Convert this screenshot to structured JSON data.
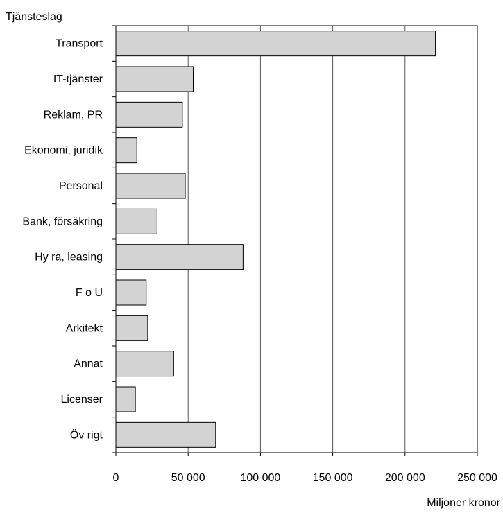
{
  "chart_data": {
    "type": "bar",
    "orientation": "horizontal",
    "title": "",
    "ylabel": "Tjänsteslag",
    "xlabel": "Miljoner kronor",
    "categories": [
      "Transport",
      "IT-tjänster",
      "Reklam, PR",
      "Ekonomi, juridik",
      "Personal",
      "Bank, försäkring",
      "Hy ra, leasing",
      "F o U",
      "Arkitekt",
      "Annat",
      "Licenser",
      "Öv rigt"
    ],
    "values": [
      221000,
      53500,
      46000,
      14500,
      48000,
      28500,
      88000,
      21000,
      22000,
      40000,
      13500,
      69000
    ],
    "xlim": [
      0,
      250000
    ],
    "xticks": [
      0,
      50000,
      100000,
      150000,
      200000,
      250000
    ],
    "xtick_labels": [
      "0",
      "50 000",
      "100 000",
      "150 000",
      "200 000",
      "250 000"
    ],
    "grid": "vertical",
    "legend": "none",
    "colors": {
      "bar_fill": "#d3d3d3",
      "bar_stroke": "#000000",
      "grid": "#555555",
      "frame": "#000000"
    }
  }
}
